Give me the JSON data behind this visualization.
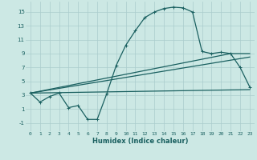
{
  "background_color": "#cce8e4",
  "grid_color": "#aacccc",
  "line_color": "#1a6060",
  "xlabel": "Humidex (Indice chaleur)",
  "xlim": [
    -0.5,
    23.5
  ],
  "ylim": [
    -2.2,
    16.5
  ],
  "yticks": [
    -1,
    1,
    3,
    5,
    7,
    9,
    11,
    13,
    15
  ],
  "xticks": [
    0,
    1,
    2,
    3,
    4,
    5,
    6,
    7,
    8,
    9,
    10,
    11,
    12,
    13,
    14,
    15,
    16,
    17,
    18,
    19,
    20,
    21,
    22,
    23
  ],
  "curve1_x": [
    0,
    1,
    2,
    3,
    4,
    5,
    6,
    7,
    8,
    9,
    10,
    11,
    12,
    13,
    14,
    15,
    16,
    17,
    18,
    19,
    20,
    21,
    22,
    23
  ],
  "curve1_y": [
    3.3,
    2.0,
    2.8,
    3.3,
    1.2,
    1.5,
    -0.5,
    -0.5,
    3.2,
    7.3,
    10.2,
    12.3,
    14.2,
    15.0,
    15.5,
    15.7,
    15.6,
    15.0,
    9.3,
    9.0,
    9.2,
    9.0,
    7.0,
    4.2
  ],
  "line1_x": [
    0,
    21,
    23
  ],
  "line1_y": [
    3.3,
    9.0,
    9.0
  ],
  "line2_x": [
    0,
    23
  ],
  "line2_y": [
    3.3,
    8.5
  ],
  "line3_x": [
    0,
    23
  ],
  "line3_y": [
    3.3,
    3.8
  ]
}
